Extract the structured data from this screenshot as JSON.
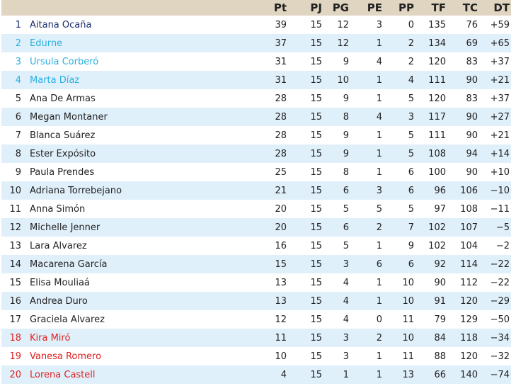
{
  "colors": {
    "header_bg": "#e0d5c1",
    "alt_row_bg": "#e0f0fb",
    "champion": "#1a2e6e",
    "europe": "#2bb0e0",
    "relegation": "#e02020"
  },
  "headers": [
    "Pt",
    "PJ",
    "PG",
    "PE",
    "PP",
    "TF",
    "TC",
    "DT"
  ],
  "rows": [
    {
      "pos": "1",
      "name": "Aitana Ocaña",
      "zone": "champion",
      "stats": [
        "39",
        "15",
        "12",
        "3",
        "0",
        "135",
        "76",
        "+59"
      ]
    },
    {
      "pos": "2",
      "name": "Edurne",
      "zone": "europe",
      "stats": [
        "37",
        "15",
        "12",
        "1",
        "2",
        "134",
        "69",
        "+65"
      ]
    },
    {
      "pos": "3",
      "name": "Ursula Corberó",
      "zone": "europe",
      "stats": [
        "31",
        "15",
        "9",
        "4",
        "2",
        "120",
        "83",
        "+37"
      ]
    },
    {
      "pos": "4",
      "name": "Marta Díaz",
      "zone": "europe",
      "stats": [
        "31",
        "15",
        "10",
        "1",
        "4",
        "111",
        "90",
        "+21"
      ]
    },
    {
      "pos": "5",
      "name": "Ana De Armas",
      "zone": "",
      "stats": [
        "28",
        "15",
        "9",
        "1",
        "5",
        "120",
        "83",
        "+37"
      ]
    },
    {
      "pos": "6",
      "name": "Megan Montaner",
      "zone": "",
      "stats": [
        "28",
        "15",
        "8",
        "4",
        "3",
        "117",
        "90",
        "+27"
      ]
    },
    {
      "pos": "7",
      "name": "Blanca Suárez",
      "zone": "",
      "stats": [
        "28",
        "15",
        "9",
        "1",
        "5",
        "111",
        "90",
        "+21"
      ]
    },
    {
      "pos": "8",
      "name": "Ester Expósito",
      "zone": "",
      "stats": [
        "28",
        "15",
        "9",
        "1",
        "5",
        "108",
        "94",
        "+14"
      ]
    },
    {
      "pos": "9",
      "name": "Paula Prendes",
      "zone": "",
      "stats": [
        "25",
        "15",
        "8",
        "1",
        "6",
        "100",
        "90",
        "+10"
      ]
    },
    {
      "pos": "10",
      "name": "Adriana Torrebejano",
      "zone": "",
      "stats": [
        "21",
        "15",
        "6",
        "3",
        "6",
        "96",
        "106",
        "−10"
      ]
    },
    {
      "pos": "11",
      "name": "Anna Simón",
      "zone": "",
      "stats": [
        "20",
        "15",
        "5",
        "5",
        "5",
        "97",
        "108",
        "−11"
      ]
    },
    {
      "pos": "12",
      "name": "Michelle Jenner",
      "zone": "",
      "stats": [
        "20",
        "15",
        "6",
        "2",
        "7",
        "102",
        "107",
        "−5"
      ]
    },
    {
      "pos": "13",
      "name": "Lara Alvarez",
      "zone": "",
      "stats": [
        "16",
        "15",
        "5",
        "1",
        "9",
        "102",
        "104",
        "−2"
      ]
    },
    {
      "pos": "14",
      "name": "Macarena García",
      "zone": "",
      "stats": [
        "15",
        "15",
        "3",
        "6",
        "6",
        "92",
        "114",
        "−22"
      ]
    },
    {
      "pos": "15",
      "name": "Elisa Mouliaá",
      "zone": "",
      "stats": [
        "13",
        "15",
        "4",
        "1",
        "10",
        "90",
        "112",
        "−22"
      ]
    },
    {
      "pos": "16",
      "name": "Andrea Duro",
      "zone": "",
      "stats": [
        "13",
        "15",
        "4",
        "1",
        "10",
        "91",
        "120",
        "−29"
      ]
    },
    {
      "pos": "17",
      "name": "Graciela Alvarez",
      "zone": "",
      "stats": [
        "12",
        "15",
        "4",
        "0",
        "11",
        "79",
        "129",
        "−50"
      ]
    },
    {
      "pos": "18",
      "name": "Kira Miró",
      "zone": "relegation",
      "stats": [
        "11",
        "15",
        "3",
        "2",
        "10",
        "84",
        "118",
        "−34"
      ]
    },
    {
      "pos": "19",
      "name": "Vanesa Romero",
      "zone": "relegation",
      "stats": [
        "10",
        "15",
        "3",
        "1",
        "11",
        "88",
        "120",
        "−32"
      ]
    },
    {
      "pos": "20",
      "name": "Lorena Castell",
      "zone": "relegation",
      "stats": [
        "4",
        "15",
        "1",
        "1",
        "13",
        "66",
        "140",
        "−74"
      ]
    }
  ]
}
